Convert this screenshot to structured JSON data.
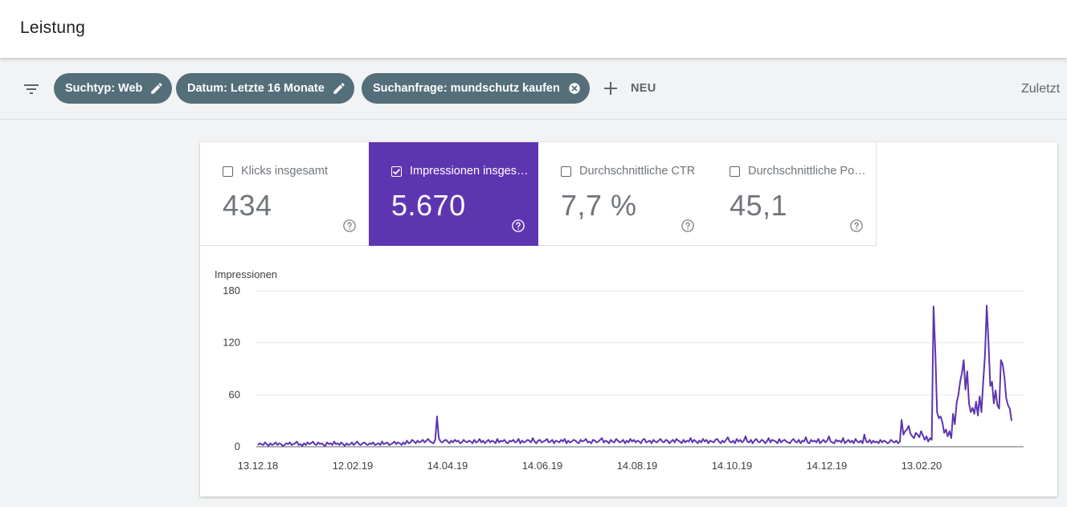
{
  "header": {
    "title": "Leistung"
  },
  "filters": {
    "chips": [
      {
        "label": "Suchtyp: Web",
        "icon": "pencil-icon"
      },
      {
        "label": "Datum: Letzte 16 Monate",
        "icon": "pencil-icon"
      },
      {
        "label": "Suchanfrage: mundschutz kaufen",
        "icon": "close-circle-icon"
      }
    ],
    "new_label": "NEU",
    "last_updated_label": "Zuletzt"
  },
  "metrics": [
    {
      "label": "Klicks insgesamt",
      "value": "434",
      "checked": false
    },
    {
      "label": "Impressionen insgesamt",
      "value": "5.670",
      "checked": true
    },
    {
      "label": "Durchschnittliche CTR",
      "value": "7,7 %",
      "checked": false
    },
    {
      "label": "Durchschnittliche Position",
      "value": "45,1",
      "checked": false
    }
  ],
  "colors": {
    "accent": "#5e35b1",
    "chip": "#546e7a",
    "line": "#5e35b1"
  },
  "chart_data": {
    "type": "line",
    "ylabel": "Impressionen",
    "ylim": [
      0,
      180
    ],
    "yticks": [
      0,
      60,
      120,
      180
    ],
    "xticks": [
      "13.12.18",
      "12.02.19",
      "14.04.19",
      "14.06.19",
      "14.08.19",
      "14.10.19",
      "14.12.19",
      "13.02.20"
    ],
    "grid": true,
    "x_start": "2018-12-13",
    "series": [
      {
        "name": "Impressionen",
        "values": [
          2,
          4,
          3,
          2,
          5,
          3,
          1,
          4,
          2,
          3,
          5,
          2,
          4,
          3,
          1,
          2,
          4,
          3,
          5,
          2,
          3,
          4,
          6,
          2,
          3,
          1,
          4,
          2,
          5,
          3,
          4,
          6,
          3,
          2,
          5,
          3,
          4,
          2,
          1,
          5,
          3,
          4,
          2,
          6,
          3,
          4,
          2,
          5,
          3,
          1,
          4,
          2,
          3,
          5,
          2,
          4,
          6,
          3,
          2,
          4,
          5,
          3,
          2,
          4,
          3,
          5,
          2,
          3,
          4,
          2,
          6,
          3,
          4,
          5,
          2,
          3,
          4,
          6,
          3,
          5,
          4,
          2,
          5,
          3,
          7,
          4,
          5,
          8,
          6,
          4,
          7,
          5,
          6,
          8,
          5,
          7,
          9,
          6,
          5,
          4,
          8,
          35,
          10,
          6,
          5,
          7,
          8,
          6,
          4,
          7,
          5,
          8,
          6,
          7,
          4,
          5,
          8,
          6,
          5,
          7,
          6,
          4,
          8,
          5,
          6,
          9,
          5,
          7,
          4,
          6,
          8,
          5,
          7,
          6,
          4,
          9,
          5,
          7,
          6,
          8,
          5,
          4,
          7,
          6,
          8,
          5,
          6,
          9,
          4,
          7,
          5,
          6,
          8,
          7,
          5,
          10,
          6,
          4,
          7,
          8,
          5,
          6,
          7,
          9,
          5,
          6,
          8,
          4,
          7,
          6,
          5,
          8,
          6,
          9,
          4,
          7,
          5,
          6,
          8,
          7,
          5,
          4,
          8,
          6,
          7,
          9,
          5,
          6,
          4,
          8,
          7,
          5,
          6,
          8,
          10,
          5,
          7,
          6,
          4,
          8,
          6,
          5,
          9,
          7,
          5,
          6,
          8,
          4,
          7,
          5,
          9,
          6,
          8,
          5,
          7,
          6,
          4,
          8,
          9,
          5,
          6,
          7,
          4,
          8,
          6,
          5,
          7,
          9,
          6,
          5,
          8,
          7,
          4,
          6,
          8,
          5,
          9,
          7,
          6,
          4,
          8,
          5,
          7,
          6,
          10,
          5,
          8,
          6,
          4,
          7,
          5,
          9,
          6,
          8,
          4,
          7,
          6,
          5,
          8,
          9,
          6,
          4,
          7,
          5,
          8,
          11,
          6,
          5,
          7,
          4,
          9,
          6,
          8,
          5,
          7,
          12,
          6,
          5,
          8,
          4,
          7,
          9,
          6,
          5,
          8,
          7,
          4,
          6,
          10,
          5,
          8,
          7,
          6,
          4,
          9,
          5,
          7,
          8,
          6,
          5,
          4,
          7,
          9,
          6,
          5,
          8,
          4,
          7,
          6,
          11,
          5,
          4,
          8,
          6,
          7,
          5,
          9,
          4,
          6,
          8,
          5,
          7,
          12,
          6,
          5,
          4,
          8,
          6,
          7,
          5,
          10,
          4,
          6,
          8,
          5,
          7,
          4,
          9,
          6,
          5,
          7,
          4,
          14,
          6,
          5,
          8,
          4,
          7,
          5,
          6,
          4,
          8,
          5,
          7,
          6,
          4,
          5,
          8,
          6,
          5,
          7,
          4,
          6,
          31,
          14,
          18,
          20,
          24,
          15,
          12,
          10,
          16,
          14,
          11,
          18,
          13,
          8,
          12,
          6,
          10,
          8,
          162,
          110,
          40,
          33,
          35,
          28,
          16,
          20,
          12,
          18,
          10,
          38,
          26,
          50,
          60,
          75,
          85,
          100,
          66,
          87,
          50,
          40,
          45,
          38,
          52,
          36,
          58,
          40,
          75,
          105,
          163,
          120,
          70,
          75,
          50,
          65,
          48,
          44,
          100,
          95,
          80,
          56,
          48,
          44,
          30
        ]
      }
    ]
  }
}
